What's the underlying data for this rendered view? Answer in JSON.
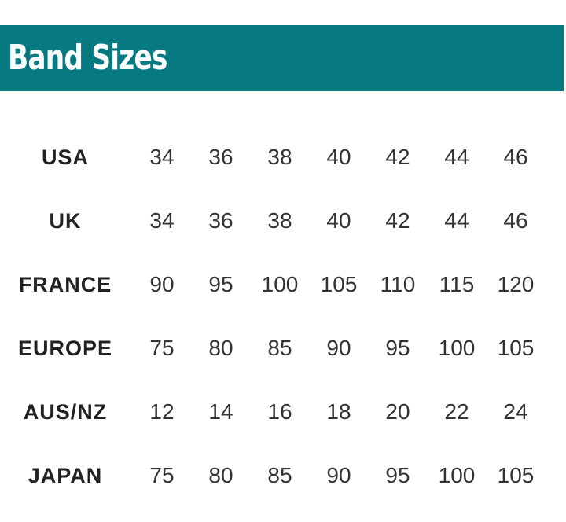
{
  "header": {
    "title": "Band Sizes",
    "background_color": "#067a80"
  },
  "rows": [
    {
      "label": "USA",
      "values": [
        "34",
        "36",
        "38",
        "40",
        "42",
        "44",
        "46"
      ]
    },
    {
      "label": "UK",
      "values": [
        "34",
        "36",
        "38",
        "40",
        "42",
        "44",
        "46"
      ]
    },
    {
      "label": "FRANCE",
      "values": [
        "90",
        "95",
        "100",
        "105",
        "110",
        "115",
        "120"
      ]
    },
    {
      "label": "EUROPE",
      "values": [
        "75",
        "80",
        "85",
        "90",
        "95",
        "100",
        "105"
      ]
    },
    {
      "label": "AUS/NZ",
      "values": [
        "12",
        "14",
        "16",
        "18",
        "20",
        "22",
        "24"
      ]
    },
    {
      "label": "JAPAN",
      "values": [
        "75",
        "80",
        "85",
        "90",
        "95",
        "100",
        "105"
      ]
    }
  ]
}
